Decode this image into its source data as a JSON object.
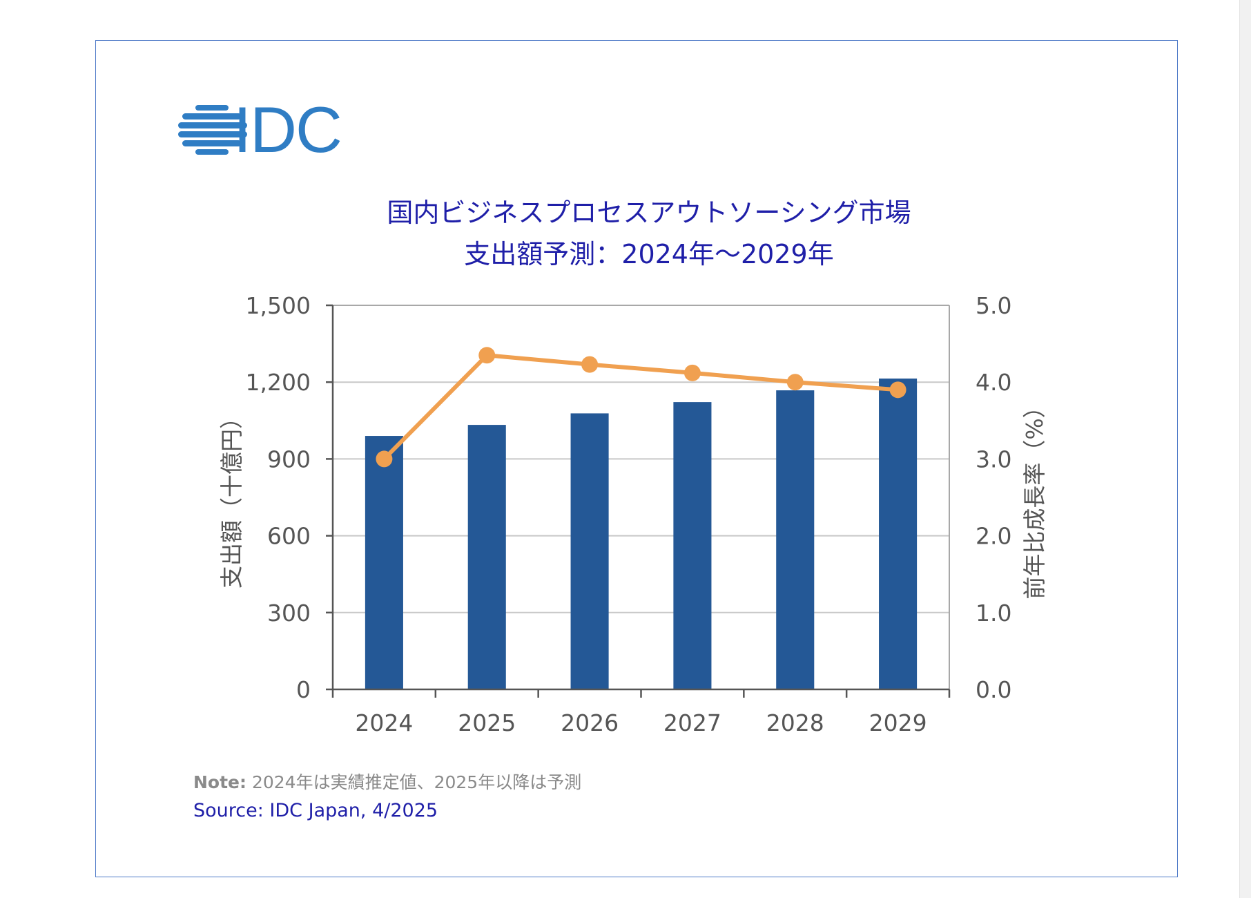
{
  "logo": {
    "text": "IDC"
  },
  "chart_data": {
    "type": "bar+line",
    "title_line1": "国内ビジネスプロセスアウトソーシング市場",
    "title_line2": "支出額予測：2024年～2029年",
    "categories": [
      "2024",
      "2025",
      "2026",
      "2027",
      "2028",
      "2029"
    ],
    "series": [
      {
        "name": "支出額",
        "type": "bar",
        "axis": "left",
        "color": "#245896",
        "values": [
          990,
          1033,
          1078,
          1122,
          1168,
          1214
        ]
      },
      {
        "name": "前年比成長率",
        "type": "line",
        "axis": "right",
        "color": "#f0a050",
        "values": [
          3.0,
          4.35,
          4.23,
          4.12,
          4.0,
          3.9
        ]
      }
    ],
    "y_left": {
      "label": "支出額（十億円）",
      "min": 0,
      "max": 1500,
      "ticks": [
        0,
        300,
        600,
        900,
        1200,
        1500
      ],
      "tick_labels": [
        "0",
        "300",
        "600",
        "900",
        "1,200",
        "1,500"
      ]
    },
    "y_right": {
      "label": "前年比成長率（%）",
      "min": 0,
      "max": 5,
      "ticks": [
        0,
        1,
        2,
        3,
        4,
        5
      ],
      "tick_labels": [
        "0.0",
        "1.0",
        "2.0",
        "3.0",
        "4.0",
        "5.0"
      ]
    },
    "grid": true,
    "legend": "none"
  },
  "note": {
    "label": "Note:",
    "text": "2024年は実績推定値、2025年以降は予測"
  },
  "source": {
    "text": "Source: IDC Japan, 4/2025"
  }
}
